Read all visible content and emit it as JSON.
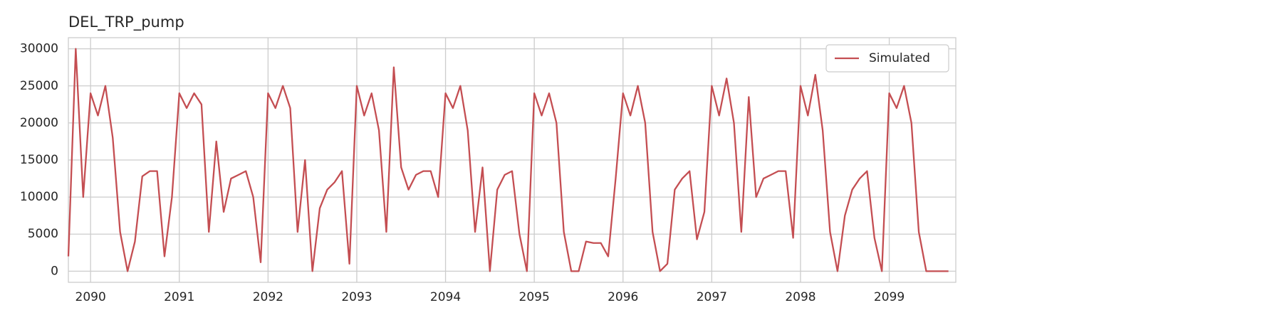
{
  "chart_data": {
    "type": "line",
    "title": "DEL_TRP_pump",
    "x": [
      2089.75,
      2089.833,
      2089.917,
      2090.0,
      2090.083,
      2090.167,
      2090.25,
      2090.333,
      2090.417,
      2090.5,
      2090.583,
      2090.667,
      2090.75,
      2090.833,
      2090.917,
      2091.0,
      2091.083,
      2091.167,
      2091.25,
      2091.333,
      2091.417,
      2091.5,
      2091.583,
      2091.667,
      2091.75,
      2091.833,
      2091.917,
      2092.0,
      2092.083,
      2092.167,
      2092.25,
      2092.333,
      2092.417,
      2092.5,
      2092.583,
      2092.667,
      2092.75,
      2092.833,
      2092.917,
      2093.0,
      2093.083,
      2093.167,
      2093.25,
      2093.333,
      2093.417,
      2093.5,
      2093.583,
      2093.667,
      2093.75,
      2093.833,
      2093.917,
      2094.0,
      2094.083,
      2094.167,
      2094.25,
      2094.333,
      2094.417,
      2094.5,
      2094.583,
      2094.667,
      2094.75,
      2094.833,
      2094.917,
      2095.0,
      2095.083,
      2095.167,
      2095.25,
      2095.333,
      2095.417,
      2095.5,
      2095.583,
      2095.667,
      2095.75,
      2095.833,
      2095.917,
      2096.0,
      2096.083,
      2096.167,
      2096.25,
      2096.333,
      2096.417,
      2096.5,
      2096.583,
      2096.667,
      2096.75,
      2096.833,
      2096.917,
      2097.0,
      2097.083,
      2097.167,
      2097.25,
      2097.333,
      2097.417,
      2097.5,
      2097.583,
      2097.667,
      2097.75,
      2097.833,
      2097.917,
      2098.0,
      2098.083,
      2098.167,
      2098.25,
      2098.333,
      2098.417,
      2098.5,
      2098.583,
      2098.667,
      2098.75,
      2098.833,
      2098.917,
      2099.0,
      2099.083,
      2099.167,
      2099.25,
      2099.333,
      2099.417,
      2099.5,
      2099.583,
      2099.667
    ],
    "series": [
      {
        "name": "Simulated",
        "color": "#c44e52",
        "values": [
          2000,
          30000,
          10000,
          24000,
          21000,
          25000,
          18000,
          5300,
          0,
          4000,
          12800,
          13500,
          13500,
          2000,
          10000,
          24000,
          22000,
          24000,
          22500,
          5300,
          17500,
          8000,
          12500,
          13000,
          13500,
          10000,
          1200,
          24000,
          22000,
          25000,
          22000,
          5300,
          15000,
          0,
          8500,
          11000,
          12000,
          13500,
          1000,
          25000,
          21000,
          24000,
          19000,
          5300,
          27500,
          14000,
          11000,
          13000,
          13500,
          13500,
          10000,
          24000,
          22000,
          25000,
          19000,
          5300,
          14000,
          0,
          11000,
          13000,
          13500,
          5000,
          0,
          24000,
          21000,
          24000,
          20000,
          5300,
          0,
          0,
          4000,
          3800,
          3800,
          2000,
          12500,
          24000,
          21000,
          25000,
          20000,
          5300,
          0,
          1000,
          11000,
          12500,
          13500,
          4300,
          8000,
          25000,
          21000,
          26000,
          20000,
          5300,
          23500,
          10000,
          12500,
          13000,
          13500,
          13500,
          4500,
          25000,
          21000,
          26500,
          19000,
          5300,
          0,
          7500,
          11000,
          12500,
          13500,
          4500,
          0,
          24000,
          22000,
          25000,
          20000,
          5300,
          0,
          0,
          0,
          0
        ]
      }
    ],
    "xlim": [
      2089.75,
      2099.75
    ],
    "xticks": [
      2090,
      2091,
      2092,
      2093,
      2094,
      2095,
      2096,
      2097,
      2098,
      2099
    ],
    "ylim": [
      -1500,
      31500
    ],
    "yticks": [
      0,
      5000,
      10000,
      15000,
      20000,
      25000,
      30000
    ],
    "grid": true,
    "legend": "upper right"
  }
}
